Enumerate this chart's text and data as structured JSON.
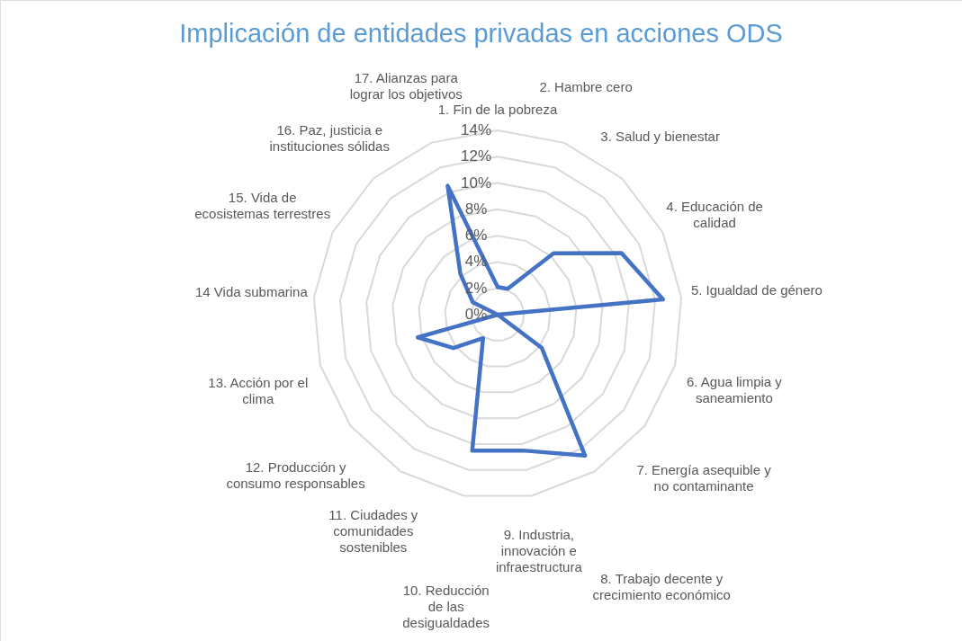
{
  "chart_data": {
    "type": "radar",
    "title": "Implicación de entidades privadas en acciones ODS",
    "categories": [
      "1. Fin de la pobreza",
      "2. Hambre cero",
      "3. Salud y bienestar",
      "4. Educación de calidad",
      "5. Igualdad de género",
      "6. Agua limpia y saneamiento",
      "7. Energía asequible y no contaminante",
      "8. Trabajo decente y crecimiento económico",
      "9. Industria, innovación e infraestructura",
      "10. Reducción de las desigualdades",
      "11. Ciudades y comunidades sostenibles",
      "12. Producción y consumo responsables",
      "13. Acción por el clima",
      "14 Vida submarina",
      "15. Vida de ecosistemas terrestres",
      "16. Paz, justicia e instituciones sólidas",
      "17. Alianzas para lograr los objetivos"
    ],
    "series": [
      {
        "color": "#4472c4",
        "values": [
          2.1,
          2.1,
          6.3,
          10.5,
          12.6,
          0,
          4.2,
          12.6,
          10.5,
          10.5,
          2.1,
          4.2,
          6.3,
          0,
          2.1,
          4.2,
          10.5
        ]
      }
    ],
    "ylim": [
      0,
      14
    ],
    "yticks": [
      {
        "value": 0,
        "label": "0%"
      },
      {
        "value": 2,
        "label": "2%"
      },
      {
        "value": 4,
        "label": "4%"
      },
      {
        "value": 6,
        "label": "6%"
      },
      {
        "value": 8,
        "label": "8%"
      },
      {
        "value": 10,
        "label": "10%"
      },
      {
        "value": 12,
        "label": "12%"
      },
      {
        "value": 14,
        "label": "14%"
      }
    ],
    "grid": true
  }
}
